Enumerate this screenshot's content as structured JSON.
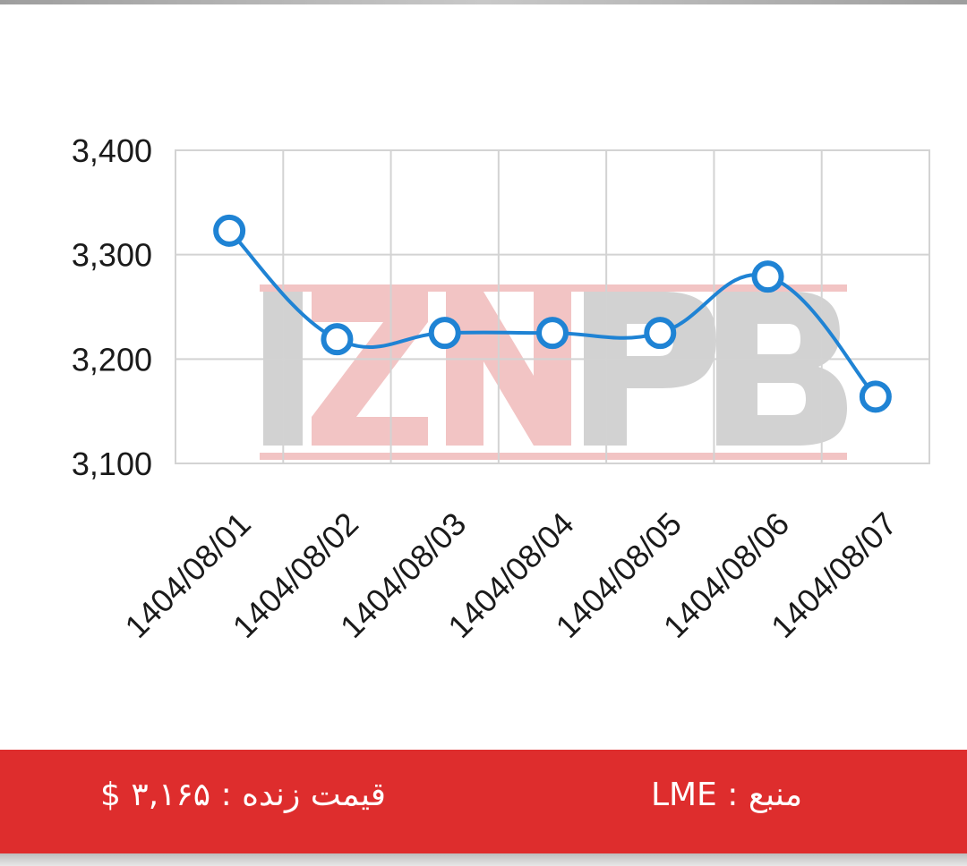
{
  "chart_data": {
    "type": "line",
    "categories": [
      "1404/08/01",
      "1404/08/02",
      "1404/08/03",
      "1404/08/04",
      "1404/08/05",
      "1404/08/06",
      "1404/08/07"
    ],
    "values": [
      3323,
      3219,
      3225,
      3225,
      3225,
      3279,
      3164
    ],
    "ylim": [
      3100,
      3400
    ],
    "yticks": [
      3100,
      3200,
      3300,
      3400
    ],
    "ytick_labels": [
      "3,100",
      "3,200",
      "3,300",
      "3,400"
    ],
    "grid": true,
    "line_color": "#1f83d4",
    "smooth": true
  },
  "watermark": {
    "text": "IZNPB",
    "colors": {
      "red": "#e37d7d",
      "gray": "#9d9d9d"
    }
  },
  "footer": {
    "background": "#de2d2d",
    "live_price": "قیمت زنده : ۳,۱۶۵ $",
    "source": "منبع : LME"
  }
}
